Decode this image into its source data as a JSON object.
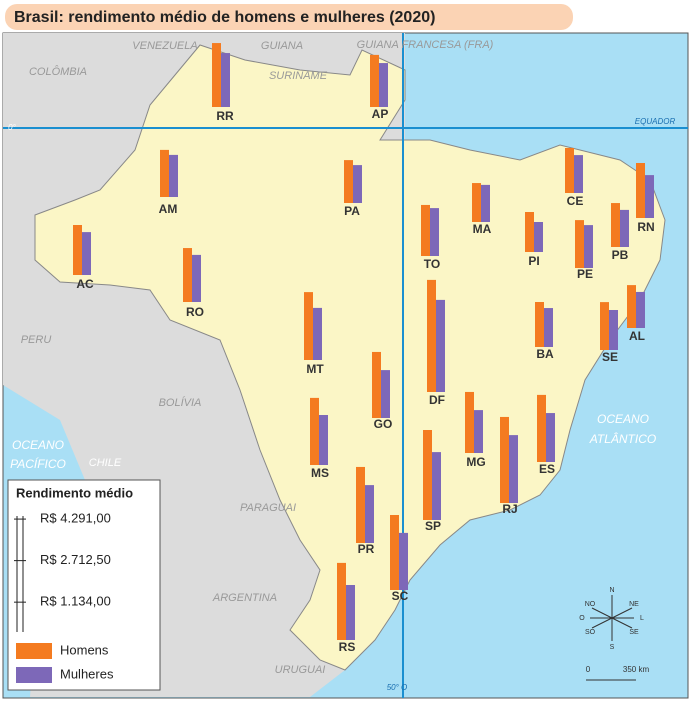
{
  "title": "Brasil: rendimento médio de homens e mulheres (2020)",
  "legend": {
    "title": "Rendimento médio",
    "ticks": [
      {
        "value": 4291,
        "label": "R$ 4.291,00"
      },
      {
        "value": 2712.5,
        "label": "R$ 2.712,50"
      },
      {
        "value": 1134,
        "label": "R$ 1.134,00"
      }
    ],
    "series": [
      {
        "name": "Homens",
        "color": "#f47b20"
      },
      {
        "name": "Mulheres",
        "color": "#7d68b8"
      }
    ]
  },
  "states": [
    {
      "label": "RR",
      "values": [
        2430,
        2050
      ]
    },
    {
      "label": "AP",
      "values": [
        1980,
        1670
      ]
    },
    {
      "label": "AM",
      "values": [
        1790,
        1600
      ]
    },
    {
      "label": "PA",
      "values": [
        1630,
        1440
      ]
    },
    {
      "label": "AC",
      "values": [
        1900,
        1630
      ]
    },
    {
      "label": "RO",
      "values": [
        2050,
        1790
      ]
    },
    {
      "label": "TO",
      "values": [
        1940,
        1820
      ]
    },
    {
      "label": "MA",
      "values": [
        1480,
        1410
      ]
    },
    {
      "label": "PI",
      "values": [
        1520,
        1140
      ]
    },
    {
      "label": "CE",
      "values": [
        1710,
        1440
      ]
    },
    {
      "label": "RN",
      "values": [
        2090,
        1630
      ]
    },
    {
      "label": "PB",
      "values": [
        1670,
        1410
      ]
    },
    {
      "label": "PE",
      "values": [
        1820,
        1630
      ]
    },
    {
      "label": "AL",
      "values": [
        1630,
        1370
      ]
    },
    {
      "label": "SE",
      "values": [
        1820,
        1520
      ]
    },
    {
      "label": "BA",
      "values": [
        1710,
        1480
      ]
    },
    {
      "label": "MT",
      "values": [
        2580,
        1980
      ]
    },
    {
      "label": "GO",
      "values": [
        2510,
        1820
      ]
    },
    {
      "label": "DF",
      "values": [
        4260,
        3500
      ]
    },
    {
      "label": "MS",
      "values": [
        2550,
        1900
      ]
    },
    {
      "label": "MG",
      "values": [
        2320,
        1630
      ]
    },
    {
      "label": "ES",
      "values": [
        2550,
        1860
      ]
    },
    {
      "label": "RJ",
      "values": [
        3270,
        2580
      ]
    },
    {
      "label": "SP",
      "values": [
        3420,
        2580
      ]
    },
    {
      "label": "PR",
      "values": [
        2890,
        2200
      ]
    },
    {
      "label": "SC",
      "values": [
        2850,
        2170
      ]
    },
    {
      "label": "RS",
      "values": [
        2930,
        2090
      ]
    }
  ],
  "places": [
    "VENEZUELA",
    "GUIANA",
    "SURINAME",
    "GUIANA FRANCESA (FRA)",
    "COLÔMBIA",
    "PERU",
    "BOLÍVIA",
    "PARAGUAI",
    "ARGENTINA",
    "URUGUAI",
    "CHILE",
    "OCEANO",
    "PACÍFICO",
    "OCEANO",
    "ATLÂNTICO",
    "EQUADOR",
    "0°",
    "50° O"
  ],
  "compass": [
    "N",
    "NE",
    "L",
    "SE",
    "S",
    "SO",
    "O",
    "NO"
  ],
  "scale": [
    "0",
    "350 km"
  ]
}
